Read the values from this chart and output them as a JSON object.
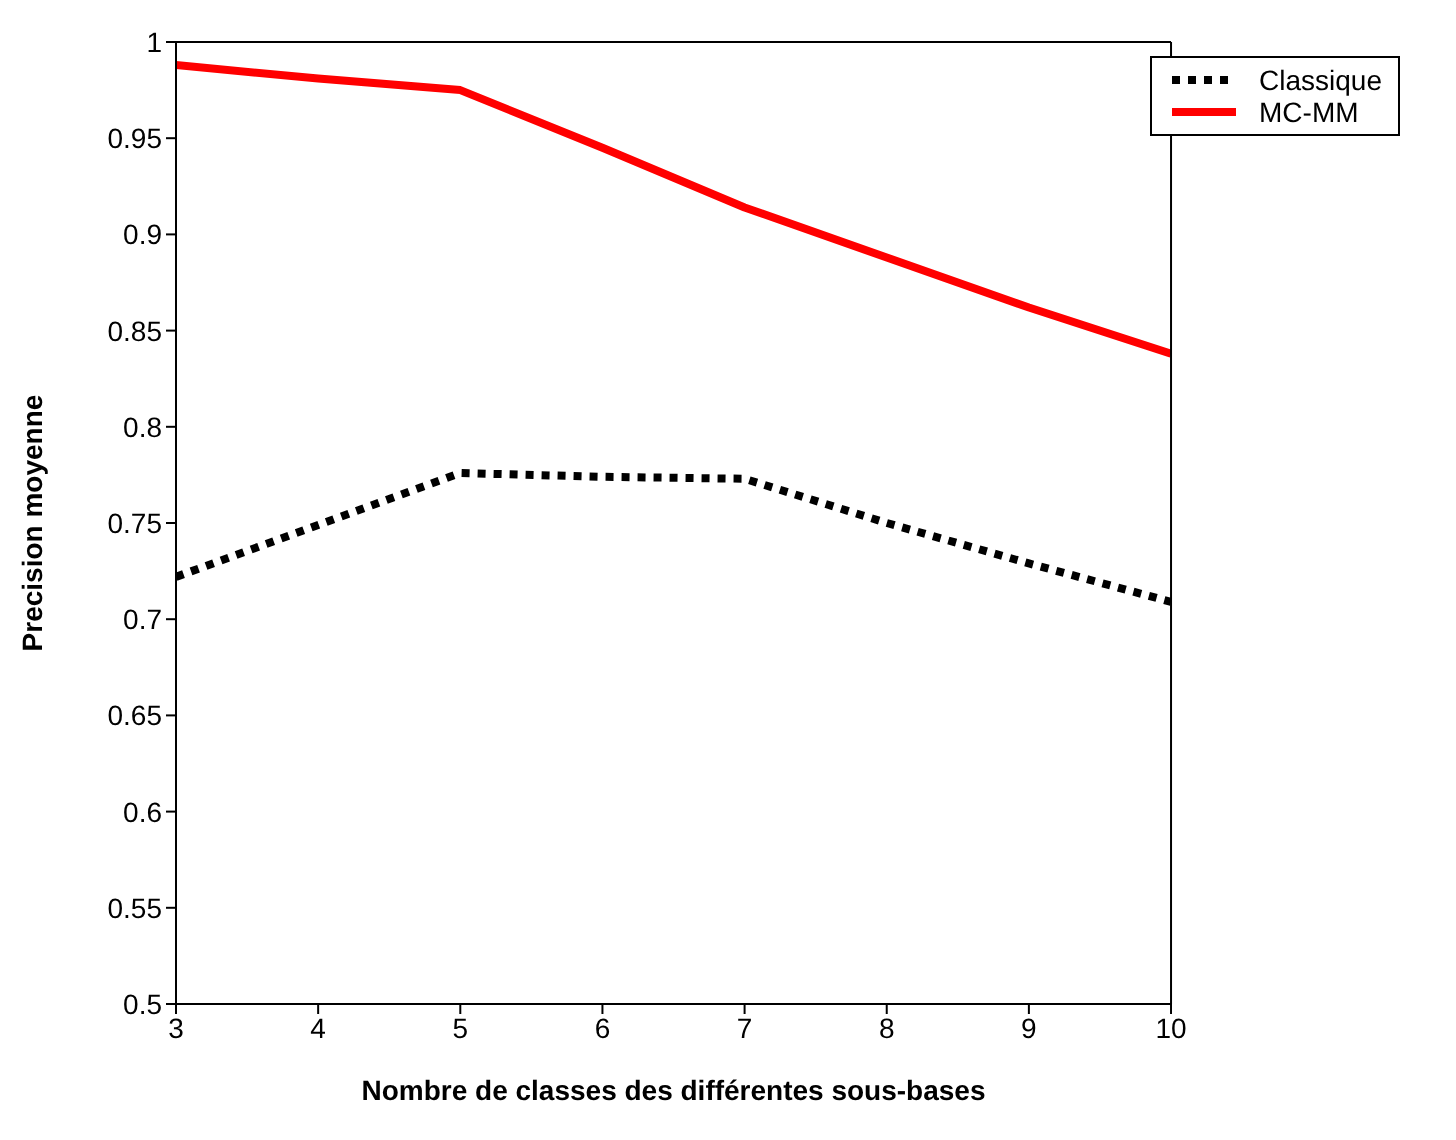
{
  "chart_data": {
    "type": "line",
    "xlabel": "Nombre de classes des différentes sous-bases",
    "ylabel": "Precision moyenne",
    "x": [
      3,
      4,
      5,
      6,
      7,
      8,
      9,
      10
    ],
    "series": [
      {
        "name": "MC-MM",
        "color": "#ff0000",
        "line_style": "solid",
        "values": [
          0.988,
          0.981,
          0.975,
          0.945,
          0.914,
          0.888,
          0.862,
          0.838
        ]
      },
      {
        "name": "Classique",
        "color": "#000000",
        "line_style": "dotted",
        "values": [
          0.722,
          0.749,
          0.776,
          0.774,
          0.773,
          0.75,
          0.729,
          0.709
        ]
      }
    ],
    "xlim": [
      3,
      10
    ],
    "xticks": [
      3,
      4,
      5,
      6,
      7,
      8,
      9,
      10
    ],
    "ylim": [
      0.5,
      1
    ],
    "yticks": [
      0.5,
      0.55,
      0.6,
      0.65,
      0.7,
      0.75,
      0.8,
      0.85,
      0.9,
      0.95,
      1
    ],
    "grid": false,
    "legend": "top right",
    "marker": "none"
  }
}
